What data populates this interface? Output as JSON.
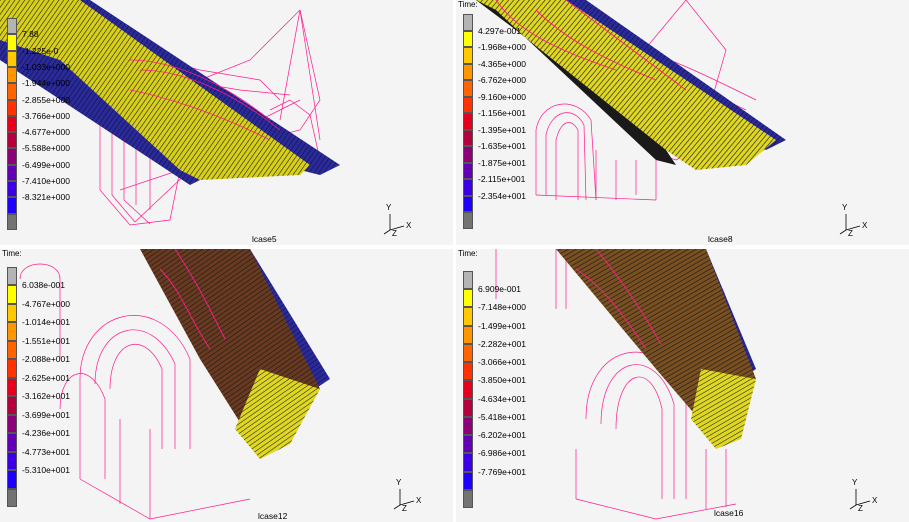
{
  "colors": {
    "legend": [
      "#b4b4b4",
      "#ffff00",
      "#ffc800",
      "#ff9600",
      "#ff6400",
      "#ff3200",
      "#e6001e",
      "#b4003c",
      "#8c0078",
      "#6400b4",
      "#3c00e6",
      "#1e00ff",
      "#737373"
    ],
    "mesh_outline": "#ff1a8c",
    "part_yellow": "#e8e020",
    "part_blue": "#2828a0"
  },
  "panels": [
    {
      "case": "lcase5",
      "time": "",
      "legend": [
        "7.88",
        "-1.225e-0",
        "-1.033e+000",
        "-1.944e+000",
        "-2.855e+000",
        "-3.766e+000",
        "-4.677e+000",
        "-5.588e+000",
        "-6.499e+000",
        "-7.410e+000",
        "-8.321e+000"
      ],
      "axis": {
        "x": "X",
        "y": "Y",
        "z": "Z"
      }
    },
    {
      "case": "lcase8",
      "time": "Time:",
      "legend": [
        "4.297e-001",
        "-1.968e+000",
        "-4.365e+000",
        "-6.762e+000",
        "-9.160e+000",
        "-1.156e+001",
        "-1.395e+001",
        "-1.635e+001",
        "-1.875e+001",
        "-2.115e+001",
        "-2.354e+001"
      ],
      "axis": {
        "x": "X",
        "y": "Y",
        "z": "Z"
      }
    },
    {
      "case": "lcase12",
      "time": "Time:",
      "legend": [
        "6.038e-001",
        "-4.767e+000",
        "-1.014e+001",
        "-1.551e+001",
        "-2.088e+001",
        "-2.625e+001",
        "-3.162e+001",
        "-3.699e+001",
        "-4.236e+001",
        "-4.773e+001",
        "-5.310e+001"
      ],
      "axis": {
        "x": "X",
        "y": "Y",
        "z": "Z"
      }
    },
    {
      "case": "lcase16",
      "time": "Time:",
      "legend": [
        "6.909e-001",
        "-7.148e+000",
        "-1.499e+001",
        "-2.282e+001",
        "-3.066e+001",
        "-3.850e+001",
        "-4.634e+001",
        "-5.418e+001",
        "-6.202e+001",
        "-6.986e+001",
        "-7.769e+001"
      ],
      "axis": {
        "x": "X",
        "y": "Y",
        "z": "Z"
      }
    }
  ]
}
